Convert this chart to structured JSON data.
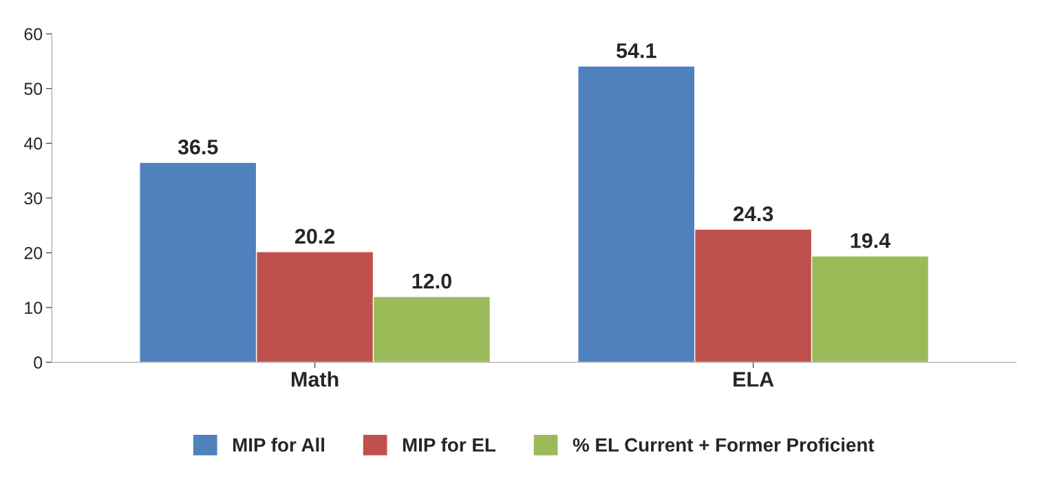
{
  "chart_data": {
    "type": "bar",
    "categories": [
      "Math",
      "ELA"
    ],
    "series": [
      {
        "name": "MIP for All",
        "color": "#4f81bd",
        "values": [
          36.5,
          54.1
        ],
        "value_labels": [
          "36.5",
          "54.1"
        ]
      },
      {
        "name": "MIP for EL",
        "color": "#c0504d",
        "values": [
          20.2,
          24.3
        ],
        "value_labels": [
          "20.2",
          "24.3"
        ]
      },
      {
        "name": "% EL Current + Former Proficient",
        "color": "#9bbb59",
        "values": [
          12.0,
          19.4
        ],
        "value_labels": [
          "12.0",
          "19.4"
        ]
      }
    ],
    "ylim": [
      0,
      60
    ],
    "yticks": [
      0,
      10,
      20,
      30,
      40,
      50,
      60
    ],
    "grid": false,
    "legend": "bottom"
  }
}
